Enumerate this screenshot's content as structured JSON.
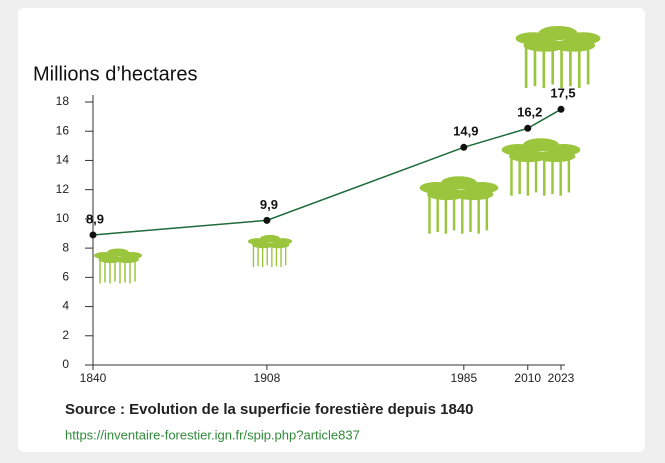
{
  "chart_data": {
    "type": "line",
    "y_label": "Millions d’hectares",
    "x": [
      1840,
      1908,
      1985,
      2010,
      2023
    ],
    "series": [
      {
        "values": [
          8.9,
          9.9,
          14.9,
          16.2,
          17.5
        ],
        "value_labels": [
          "8,9",
          "9,9",
          "14,9",
          "16,2",
          "17,5"
        ],
        "color": "#1e6b3c"
      }
    ],
    "xlim": [
      1840,
      2023
    ],
    "xticks": [
      1840,
      1908,
      1985,
      2010,
      2023
    ],
    "ylim": [
      0,
      18
    ],
    "yticks": [
      0,
      2,
      4,
      6,
      8,
      10,
      12,
      14,
      16,
      18
    ]
  },
  "source": {
    "text": "Source : Evolution de la superficie forestière depuis 1840",
    "url": "https://inventaire-forestier.ign.fr/spip.php?article837"
  }
}
